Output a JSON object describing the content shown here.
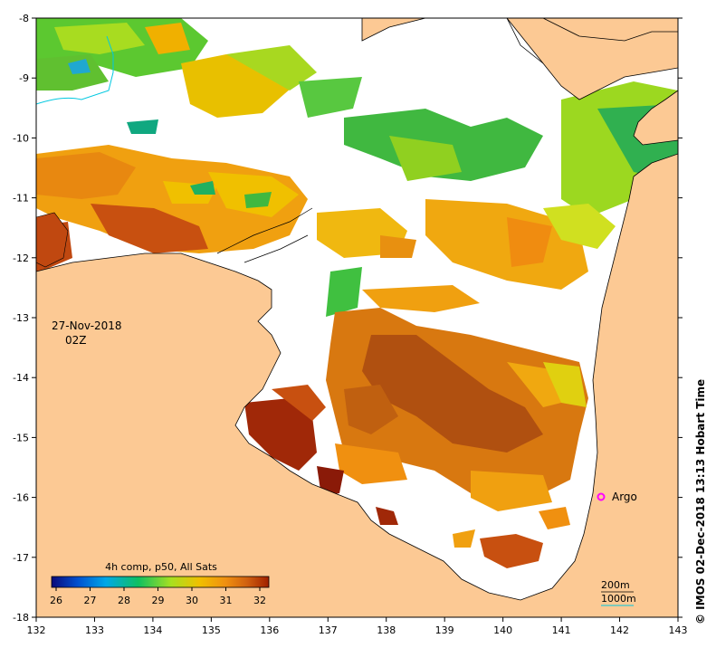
{
  "map": {
    "lon_range": [
      132,
      143
    ],
    "lat_range": [
      -18,
      -8
    ],
    "x_ticks": [
      "132",
      "133",
      "134",
      "135",
      "136",
      "137",
      "138",
      "139",
      "140",
      "141",
      "142",
      "143"
    ],
    "y_ticks": [
      "-8",
      "-9",
      "-10",
      "-11",
      "-12",
      "-13",
      "-14",
      "-15",
      "-16",
      "-17",
      "-18"
    ],
    "land_color": "#fcc994",
    "coast_color": "#000000"
  },
  "annotation": {
    "date": "27-Nov-2018",
    "time": "02Z"
  },
  "colorbar": {
    "title": "4h comp, p50, All Sats",
    "labels": [
      "26",
      "27",
      "28",
      "29",
      "30",
      "31",
      "32"
    ],
    "colors": [
      "#0a0a7a",
      "#0050d0",
      "#00a8e8",
      "#10c060",
      "#a8e020",
      "#f0c000",
      "#f09010",
      "#d06010",
      "#a02000"
    ]
  },
  "marker": {
    "label": "Argo",
    "color": "#ff00ff",
    "lon": 141.7,
    "lat": -16.0
  },
  "isobaths": {
    "line1": "200m",
    "line2": "1000m"
  },
  "credit": "© IMOS 02-Dec-2018 13:13 Hobart Time"
}
